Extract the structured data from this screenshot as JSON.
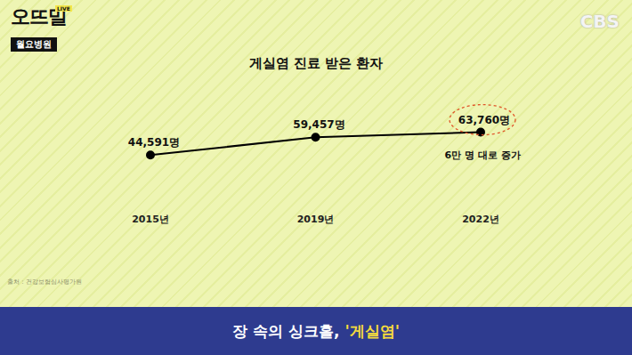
{
  "chart_data": {
    "type": "line",
    "title": "게실염 진료 받은 환자",
    "categories": [
      "2015년",
      "2019년",
      "2022년"
    ],
    "values": [
      44591,
      59457,
      63760
    ],
    "value_labels": [
      "44,591명",
      "59,457명",
      "63,760명"
    ],
    "data_labels": true,
    "color": "#000000",
    "marker": "circle",
    "ylim": [
      0,
      100000
    ],
    "tick_labels": "x",
    "annotation": "6만 명 대로 증가",
    "source": "출처 : 건강보험심사평가원"
  },
  "page": {
    "logo": "오뜨밀",
    "live": "LIVE",
    "program": "월요병원",
    "broadcaster": "CBS",
    "caption": [
      "장 속의 싱크홀,",
      "'게실염'"
    ]
  }
}
